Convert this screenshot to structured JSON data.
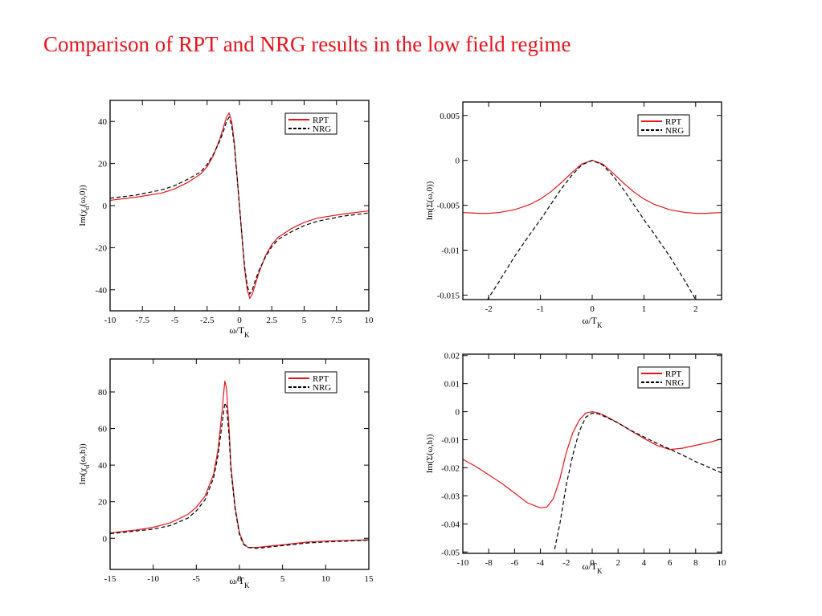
{
  "slide": {
    "title": "Comparison of RPT and NRG results in the low field regime"
  },
  "chart_data": [
    {
      "type": "line",
      "id": "chi-omega-0",
      "ylabel": "Im(χ_d(ω,0))",
      "xlabel": "ω/T_K",
      "xlim": [
        -10,
        10
      ],
      "ylim": [
        -50,
        50
      ],
      "x_ticks": [
        -10,
        -7.5,
        -5,
        -2.5,
        0,
        2.5,
        5,
        7.5,
        10
      ],
      "x_tick_labels": [
        "-10",
        "-7.5",
        "-5",
        "-2.5",
        "0",
        "2.5",
        "5",
        "7.5",
        "10"
      ],
      "y_ticks": [
        -40,
        -20,
        0,
        20,
        40
      ],
      "y_tick_labels": [
        "-40",
        "-20",
        "0",
        "20",
        "40"
      ],
      "legend": "top-right",
      "series": [
        {
          "name": "RPT",
          "color": "#e8141c",
          "dash": "",
          "x": [
            -10,
            -8,
            -6,
            -5,
            -4,
            -3,
            -2.5,
            -2,
            -1.5,
            -1.2,
            -1,
            -0.8,
            -0.6,
            -0.4,
            -0.2,
            0,
            0.2,
            0.4,
            0.6,
            0.8,
            1,
            1.2,
            1.5,
            2,
            2.5,
            3,
            4,
            5,
            6,
            8,
            10
          ],
          "y": [
            2.5,
            4,
            6,
            8,
            11,
            15,
            18.5,
            24,
            32,
            38,
            42,
            44,
            40,
            30,
            15,
            0,
            -15,
            -30,
            -40,
            -44,
            -42,
            -38,
            -32,
            -24,
            -18.5,
            -15,
            -11,
            -8,
            -6,
            -4,
            -2.5
          ]
        },
        {
          "name": "NRG",
          "color": "#000000",
          "dash": "5,3",
          "x": [
            -10,
            -8,
            -6,
            -5,
            -4,
            -3,
            -2.5,
            -2,
            -1.5,
            -1.2,
            -1,
            -0.8,
            -0.6,
            -0.4,
            -0.2,
            0,
            0.2,
            0.4,
            0.6,
            0.8,
            1,
            1.2,
            1.5,
            2,
            2.5,
            3,
            4,
            5,
            6,
            8,
            10
          ],
          "y": [
            3.5,
            5,
            7.5,
            9.5,
            12.5,
            16,
            19.5,
            24.5,
            31,
            36,
            40,
            42,
            38,
            29,
            15,
            0,
            -15,
            -29,
            -38,
            -42,
            -40,
            -36,
            -31,
            -24.5,
            -19.5,
            -16,
            -12.5,
            -9.5,
            -7.5,
            -5,
            -3.5
          ]
        }
      ]
    },
    {
      "type": "line",
      "id": "sigma-omega-0",
      "ylabel": "Im(Σ(ω,0))",
      "xlabel": "ω/T_K",
      "xlim": [
        -2.5,
        2.5
      ],
      "ylim": [
        -0.0155,
        0.0065
      ],
      "x_ticks": [
        -2,
        -1,
        0,
        1,
        2
      ],
      "x_tick_labels": [
        "-2",
        "-1",
        "0",
        "1",
        "2"
      ],
      "y_ticks": [
        0.005,
        0,
        -0.005,
        -0.01,
        -0.015
      ],
      "y_tick_labels": [
        "0.005",
        "0",
        "-0.005",
        "-0.01",
        "-0.015"
      ],
      "legend": "top-right",
      "series": [
        {
          "name": "RPT",
          "color": "#e8141c",
          "dash": "",
          "x": [
            -2.5,
            -2.2,
            -2,
            -1.8,
            -1.5,
            -1.2,
            -1,
            -0.8,
            -0.6,
            -0.4,
            -0.2,
            0,
            0.2,
            0.4,
            0.6,
            0.8,
            1,
            1.2,
            1.5,
            1.8,
            2,
            2.2,
            2.5
          ],
          "y": [
            -0.0058,
            -0.0059,
            -0.0059,
            -0.0058,
            -0.0055,
            -0.0049,
            -0.0043,
            -0.0035,
            -0.0025,
            -0.0014,
            -0.0004,
            0,
            -0.0004,
            -0.0014,
            -0.0025,
            -0.0035,
            -0.0043,
            -0.0049,
            -0.0055,
            -0.0058,
            -0.0059,
            -0.0059,
            -0.0058
          ]
        },
        {
          "name": "NRG",
          "color": "#000000",
          "dash": "5,3",
          "x": [
            -2.1,
            -1.8,
            -1.5,
            -1.2,
            -1,
            -0.8,
            -0.6,
            -0.4,
            -0.2,
            0,
            0.2,
            0.4,
            0.6,
            0.8,
            1,
            1.2,
            1.5,
            1.8,
            2.0
          ],
          "y": [
            -0.0162,
            -0.0135,
            -0.0107,
            -0.0082,
            -0.0066,
            -0.0049,
            -0.0032,
            -0.0017,
            -0.0005,
            0,
            -0.0005,
            -0.0017,
            -0.0032,
            -0.0049,
            -0.0066,
            -0.0082,
            -0.0107,
            -0.0135,
            -0.0155
          ]
        }
      ]
    },
    {
      "type": "line",
      "id": "chi-omega-h",
      "ylabel": "Im(χ_d(ω,h))",
      "xlabel": "ω/T_K",
      "xlim": [
        -15,
        15
      ],
      "ylim": [
        -17,
        98
      ],
      "x_ticks": [
        -15,
        -10,
        -5,
        0,
        5,
        10,
        15
      ],
      "x_tick_labels": [
        "-15",
        "-10",
        "-5",
        "0",
        "5",
        "10",
        "15"
      ],
      "y_ticks": [
        0,
        20,
        40,
        60,
        80
      ],
      "y_tick_labels": [
        "0",
        "20",
        "40",
        "60",
        "80"
      ],
      "legend": "top-right",
      "series": [
        {
          "name": "RPT",
          "color": "#e8141c",
          "dash": "",
          "x": [
            -15,
            -12,
            -10,
            -8,
            -6,
            -5,
            -4,
            -3,
            -2.5,
            -2,
            -1.7,
            -1.5,
            -1.2,
            -1,
            -0.5,
            0,
            0.5,
            1,
            2,
            3,
            5,
            8,
            10,
            15
          ],
          "y": [
            3,
            4.5,
            6,
            8.5,
            13,
            17,
            23,
            35,
            48,
            70,
            86,
            82,
            60,
            40,
            17,
            3,
            -3,
            -5,
            -5,
            -4.5,
            -3.5,
            -2,
            -1.5,
            -0.8
          ]
        },
        {
          "name": "NRG",
          "color": "#000000",
          "dash": "5,3",
          "x": [
            -15,
            -12,
            -10,
            -8,
            -6,
            -5,
            -4,
            -3,
            -2.5,
            -2,
            -1.7,
            -1.5,
            -1.2,
            -1,
            -0.5,
            0,
            0.5,
            1,
            2,
            3,
            5,
            8,
            10,
            15
          ],
          "y": [
            2.5,
            4,
            5,
            7,
            11,
            15,
            21,
            33,
            45,
            63,
            74,
            72,
            56,
            38,
            16,
            2,
            -3.5,
            -5,
            -5.5,
            -5,
            -4,
            -2.5,
            -2,
            -1
          ]
        }
      ]
    },
    {
      "type": "line",
      "id": "sigma-omega-h",
      "ylabel": "Im(Σ(ω,h))",
      "xlabel": "ω/T_K",
      "xlim": [
        -10,
        10
      ],
      "ylim": [
        -0.0505,
        0.0205
      ],
      "x_ticks": [
        -10,
        -8,
        -6,
        -4,
        -2,
        0,
        2,
        4,
        6,
        8,
        10
      ],
      "x_tick_labels": [
        "-10",
        "-8",
        "-6",
        "-4",
        "-2",
        "0",
        "2",
        "4",
        "6",
        "8",
        "10"
      ],
      "y_ticks": [
        0.02,
        0.01,
        0,
        -0.01,
        -0.02,
        -0.03,
        -0.04,
        -0.05
      ],
      "y_tick_labels": [
        "0.02",
        "0.01",
        "0",
        "-0.01",
        "-0.02",
        "-0.03",
        "-0.04",
        "-0.05"
      ],
      "legend": "top-right",
      "series": [
        {
          "name": "RPT",
          "color": "#e8141c",
          "dash": "",
          "x": [
            -10,
            -9,
            -8,
            -7,
            -6,
            -5,
            -4,
            -3.5,
            -3,
            -2.5,
            -2,
            -1.5,
            -1,
            -0.5,
            0,
            0.5,
            1,
            2,
            3,
            4,
            5,
            6,
            7,
            8,
            9,
            10
          ],
          "y": [
            -0.017,
            -0.0195,
            -0.0225,
            -0.0255,
            -0.029,
            -0.0325,
            -0.0343,
            -0.034,
            -0.031,
            -0.024,
            -0.0145,
            -0.0075,
            -0.003,
            -0.0005,
            0,
            -0.0005,
            -0.0015,
            -0.004,
            -0.0068,
            -0.0095,
            -0.012,
            -0.0135,
            -0.013,
            -0.012,
            -0.011,
            -0.0097
          ]
        },
        {
          "name": "NRG",
          "color": "#000000",
          "dash": "5,3",
          "x": [
            -2.9,
            -2.5,
            -2,
            -1.5,
            -1,
            -0.5,
            0,
            0.5,
            1,
            2,
            3,
            4,
            5,
            6,
            7,
            8,
            9,
            10
          ],
          "y": [
            -0.049,
            -0.04,
            -0.026,
            -0.0155,
            -0.007,
            -0.002,
            -0.0005,
            -0.0008,
            -0.0018,
            -0.004,
            -0.0067,
            -0.009,
            -0.0113,
            -0.0133,
            -0.0155,
            -0.0178,
            -0.0198,
            -0.0218
          ]
        }
      ]
    }
  ]
}
